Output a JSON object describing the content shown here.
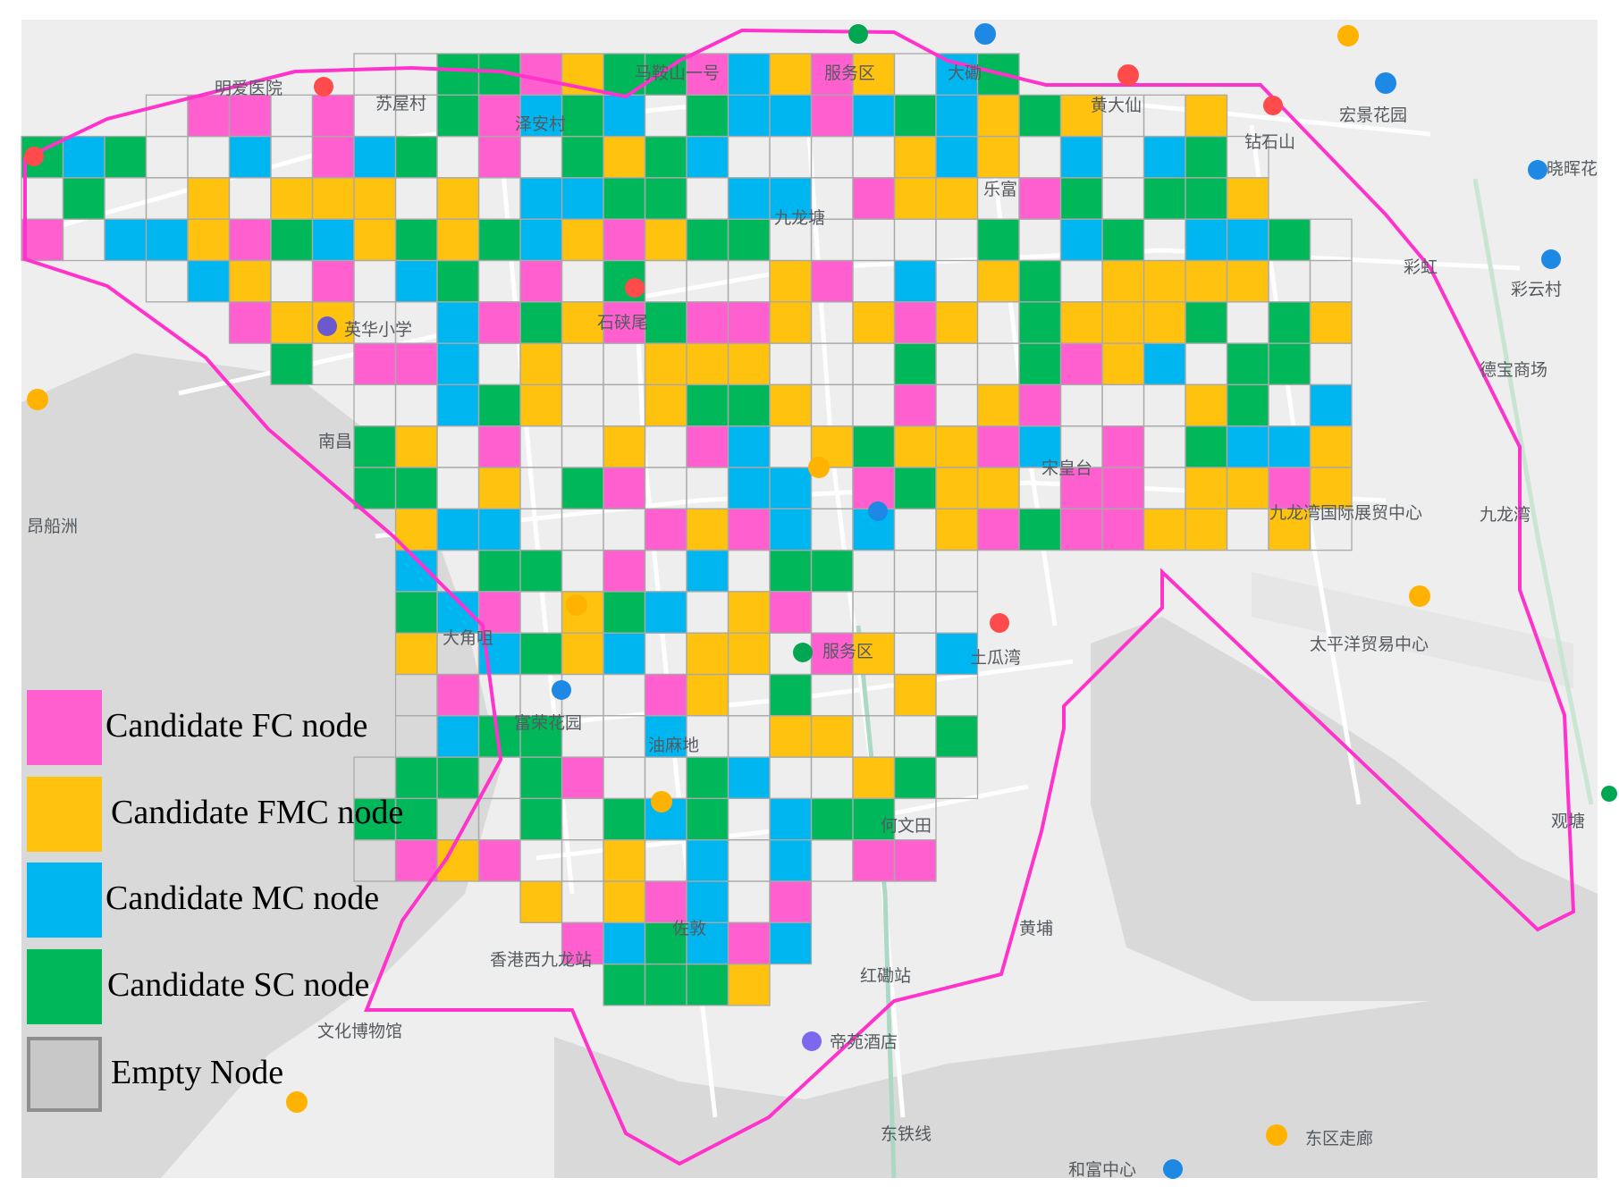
{
  "legend": {
    "fc": "Candidate FC node",
    "fmc": "Candidate FMC node",
    "mc": "Candidate MC node",
    "sc": "Candidate SC node",
    "empty": "Empty Node"
  },
  "colors": {
    "fc": "#ff5fcf",
    "fmc": "#ffc20e",
    "mc": "#00b6f0",
    "sc": "#00b85a",
    "boundary": "#ff33cc",
    "grid": "#a9a9a9",
    "land": "#eeeeee",
    "water": "#d9d9d9"
  },
  "place_labels": [
    "明爱医院",
    "苏屋村",
    "马鞍山一号",
    "服务区",
    "大磡",
    "黄大仙",
    "宏景花园",
    "晓晖花",
    "泽安村",
    "钻石山",
    "九龙塘",
    "乐富",
    "彩虹",
    "彩云村",
    "英华小学",
    "德宝商场",
    "南昌",
    "宋皇台",
    "九龙湾",
    "九龙湾国际展贸中心",
    "昂船洲",
    "大角咀",
    "服务区",
    "太平洋贸易中心",
    "土瓜湾",
    "富荣花园",
    "油麻地",
    "何文田",
    "佐敦",
    "黄埔",
    "香港西九龙站",
    "红磡站",
    "文化博物馆",
    "帝苑酒店",
    "东区走廊",
    "和富中心",
    "观塘",
    "东铁线",
    "石硖尾"
  ]
}
